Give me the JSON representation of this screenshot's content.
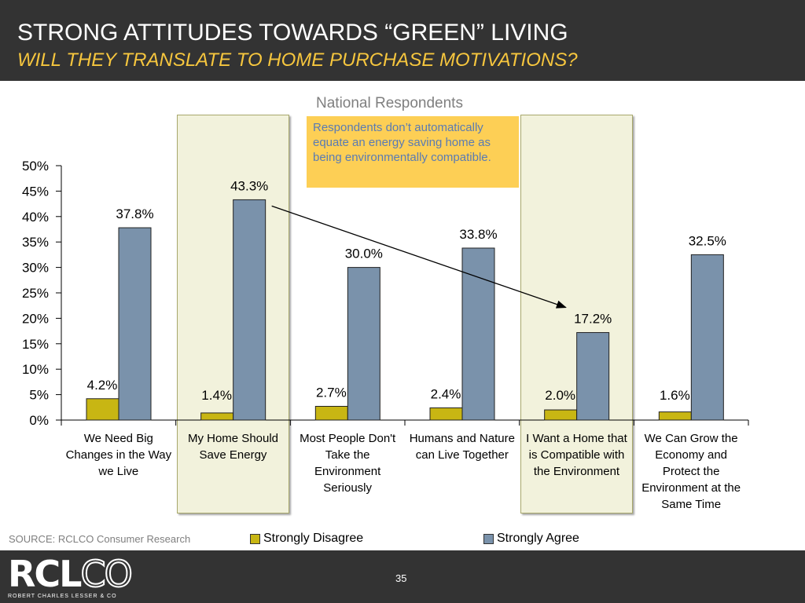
{
  "header": {
    "title": "STRONG ATTITUDES TOWARDS “GREEN” LIVING",
    "subtitle": "WILL THEY TRANSLATE TO HOME PURCHASE MOTIVATIONS?"
  },
  "callout": {
    "text": "Respondents don’t automatically equate an energy saving home as being environmentally compatible."
  },
  "source": "SOURCE: RCLCO Consumer Research",
  "logo": {
    "main": "RCLCO",
    "sub": "ROBERT CHARLES LESSER & CO"
  },
  "page_number": "35",
  "colors": {
    "strongly_disagree": "#c8b613",
    "strongly_agree": "#7a92ab",
    "highlight_fill": "#f2f2dc",
    "callout_fill": "#fdcf55",
    "callout_text": "#5a7bb3",
    "header_bg": "#333333",
    "subtitle": "#f6c63e"
  },
  "chart_data": {
    "type": "bar",
    "title": "National Respondents",
    "categories": [
      "We Need Big Changes in the Way we Live",
      "My Home Should Save Energy",
      "Most People Don't Take the Environment Seriously",
      "Humans and Nature can Live Together",
      "I Want a Home that is Compatible with the Environment",
      "We Can Grow the Economy and Protect the Environment at the Same Time"
    ],
    "series": [
      {
        "name": "Strongly Disagree",
        "values": [
          4.2,
          1.4,
          2.7,
          2.4,
          2.0,
          1.6
        ],
        "labels": [
          "4.2%",
          "1.4%",
          "2.7%",
          "2.4%",
          "2.0%",
          "1.6%"
        ]
      },
      {
        "name": "Strongly Agree",
        "values": [
          37.8,
          43.3,
          30.0,
          33.8,
          17.2,
          32.5
        ],
        "labels": [
          "37.8%",
          "43.3%",
          "30.0%",
          "33.8%",
          "17.2%",
          "32.5%"
        ]
      }
    ],
    "y_ticks": [
      "0%",
      "5%",
      "10%",
      "15%",
      "20%",
      "25%",
      "30%",
      "35%",
      "40%",
      "45%",
      "50%"
    ],
    "ylim": [
      0,
      50
    ],
    "highlighted_categories": [
      1,
      4
    ],
    "annotation_arrow": {
      "from_category": 1,
      "to_category": 4,
      "series": "Strongly Agree"
    },
    "legend": "bottom",
    "grid": false
  }
}
